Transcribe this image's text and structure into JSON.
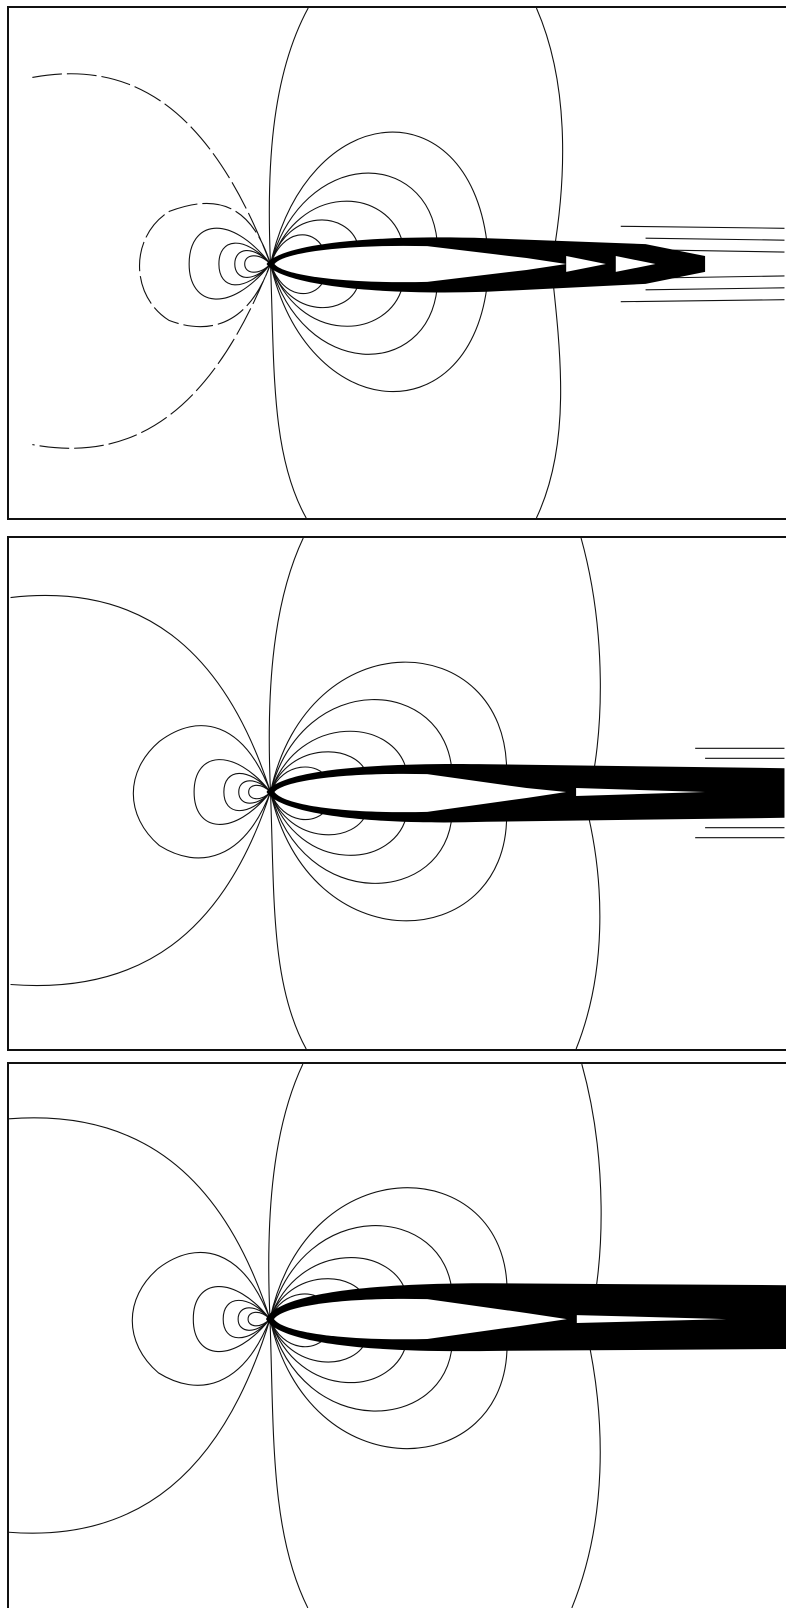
{
  "figure": {
    "panel_count": 3,
    "colors": {
      "line": "#111111",
      "background": "#ffffff",
      "wake": "#000000"
    }
  }
}
